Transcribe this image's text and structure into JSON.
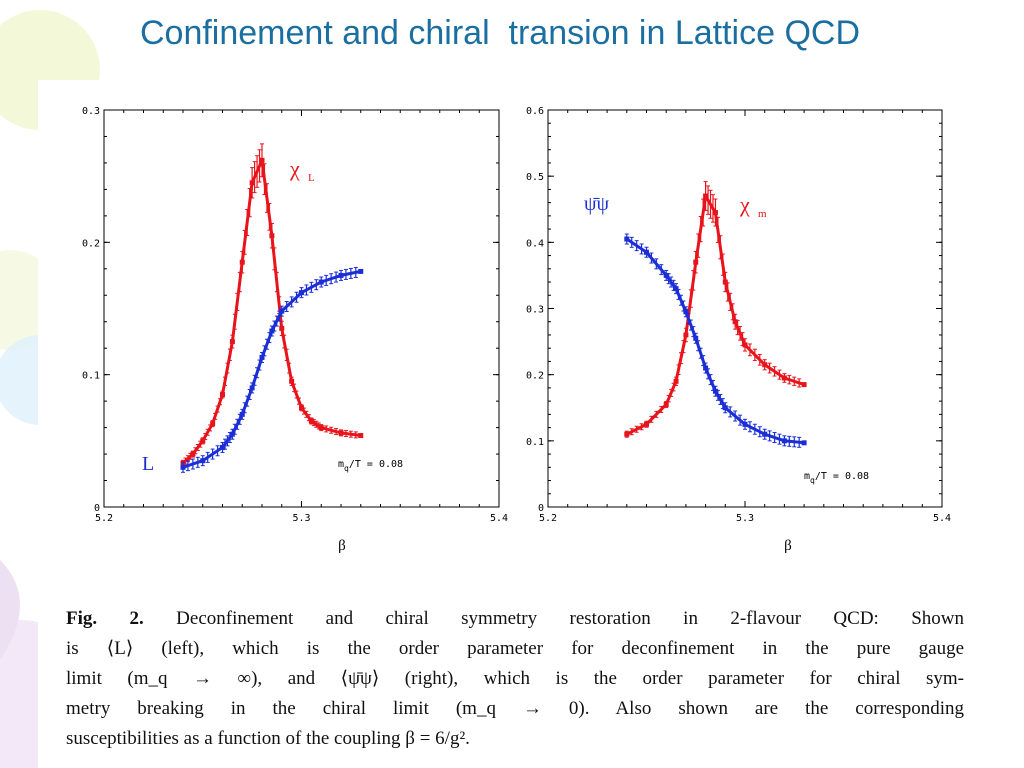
{
  "slide": {
    "title": "Confinement and chiral  transion in Lattice QCD"
  },
  "caption": {
    "fig_label": "Fig. 2.",
    "lines": [
      "Deconfinement and chiral symmetry restoration in 2-flavour QCD: Shown",
      "is ⟨L⟩ (left), which is the order parameter for deconfinement in the pure gauge",
      "limit (m_q → ∞), and ⟨ψ̄ψ⟩ (right), which is the order parameter for chiral sym-",
      "metry breaking in the chiral limit (m_q → 0). Also shown are the corresponding",
      "susceptibilities as a function of the coupling β = 6/g²."
    ]
  },
  "colors": {
    "title": "#1a6fa0",
    "red": "#e8141c",
    "blue": "#1c2fd6"
  },
  "chart_data": [
    {
      "type": "line",
      "xlabel": "β",
      "xlim": [
        5.2,
        5.4
      ],
      "ylim": [
        0,
        0.3
      ],
      "xticks": [
        "5.2",
        "5.3",
        "5.4"
      ],
      "yticks": [
        "0",
        "0.1",
        "0.2",
        "0.3"
      ],
      "annotation": "m_q/T = 0.08",
      "series": [
        {
          "name": "χ_L",
          "color": "red",
          "x": [
            5.24,
            5.245,
            5.25,
            5.255,
            5.26,
            5.265,
            5.27,
            5.275,
            5.28,
            5.285,
            5.29,
            5.295,
            5.3,
            5.305,
            5.31,
            5.32,
            5.33
          ],
          "y": [
            0.033,
            0.04,
            0.05,
            0.063,
            0.085,
            0.125,
            0.185,
            0.245,
            0.262,
            0.205,
            0.135,
            0.095,
            0.075,
            0.065,
            0.06,
            0.056,
            0.054
          ]
        },
        {
          "name": "L",
          "color": "blue",
          "x": [
            5.24,
            5.25,
            5.26,
            5.265,
            5.27,
            5.275,
            5.28,
            5.285,
            5.29,
            5.3,
            5.31,
            5.32,
            5.33
          ],
          "y": [
            0.03,
            0.035,
            0.045,
            0.055,
            0.07,
            0.09,
            0.113,
            0.133,
            0.148,
            0.162,
            0.17,
            0.175,
            0.178
          ]
        }
      ]
    },
    {
      "type": "line",
      "xlabel": "β",
      "xlim": [
        5.2,
        5.4
      ],
      "ylim": [
        0,
        0.6
      ],
      "xticks": [
        "5.2",
        "5.3",
        "5.4"
      ],
      "yticks": [
        "0",
        "0.1",
        "0.2",
        "0.3",
        "0.4",
        "0.5",
        "0.6"
      ],
      "annotation": "m_q/T = 0.08",
      "series": [
        {
          "name": "χ_m",
          "color": "red",
          "x": [
            5.24,
            5.25,
            5.26,
            5.265,
            5.27,
            5.275,
            5.28,
            5.285,
            5.29,
            5.295,
            5.3,
            5.31,
            5.32,
            5.33
          ],
          "y": [
            0.11,
            0.125,
            0.155,
            0.19,
            0.26,
            0.37,
            0.47,
            0.445,
            0.34,
            0.28,
            0.245,
            0.215,
            0.195,
            0.185
          ]
        },
        {
          "name": "ψ̄ψ",
          "color": "blue",
          "x": [
            5.24,
            5.25,
            5.26,
            5.265,
            5.27,
            5.275,
            5.28,
            5.285,
            5.29,
            5.3,
            5.31,
            5.32,
            5.33
          ],
          "y": [
            0.405,
            0.385,
            0.35,
            0.33,
            0.295,
            0.255,
            0.21,
            0.175,
            0.15,
            0.125,
            0.11,
            0.1,
            0.097
          ]
        }
      ]
    }
  ]
}
